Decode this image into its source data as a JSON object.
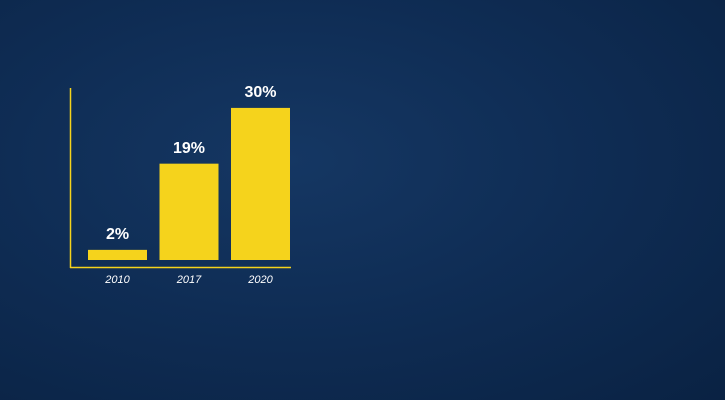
{
  "chart_data": {
    "type": "bar",
    "categories": [
      "2010",
      "2017",
      "2020"
    ],
    "values": [
      2,
      19,
      30
    ],
    "value_labels": [
      "2%",
      "19%",
      "30%"
    ],
    "color": "#f5d31c"
  }
}
